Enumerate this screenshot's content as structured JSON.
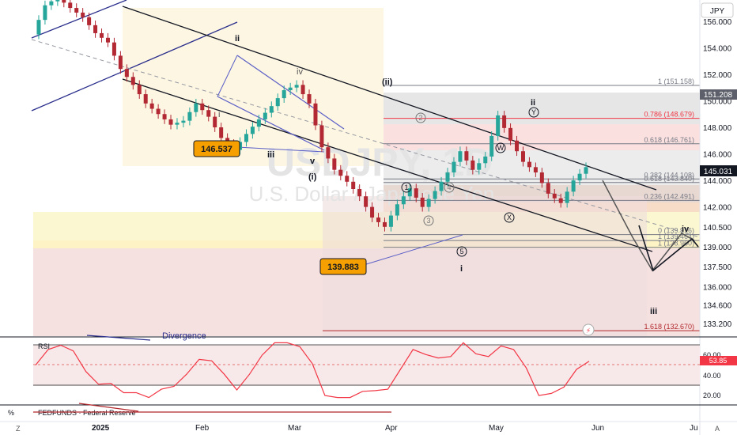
{
  "header": {
    "currency": "JPY",
    "watermark_symbol": "USDJPY, 1D",
    "watermark_name": "U.S. Dollar / Japanese Yen"
  },
  "price_axis": {
    "ticks": [
      "156.000",
      "154.000",
      "152.000",
      "150.000",
      "148.000",
      "146.000",
      "144.000",
      "142.000",
      "140.500",
      "139.000",
      "137.500",
      "136.000",
      "134.600",
      "133.200"
    ],
    "last_price": "145.031",
    "last_price_color": "#131722",
    "marker_151": "151.208"
  },
  "fib_levels": [
    {
      "label": "1 (151.158)",
      "price": 151.158
    },
    {
      "label": "0.786 (148.679)",
      "price": 148.679
    },
    {
      "label": "0.618 (146.761)",
      "price": 146.761
    },
    {
      "label": "0.382 (144.108)",
      "price": 144.108
    },
    {
      "label": "0.618 (143.840)",
      "price": 143.84
    },
    {
      "label": "0.236 (142.491)",
      "price": 142.491
    },
    {
      "label": "0 (139.916)",
      "price": 139.916
    },
    {
      "label": "1 (139.464)",
      "price": 139.464
    },
    {
      "label": "1 (138.960)",
      "price": 138.96
    },
    {
      "label": "1.618 (132.670)",
      "price": 132.67
    }
  ],
  "callouts": {
    "high": "146.537",
    "low": "139.883"
  },
  "wave_labels": {
    "ii_top": "ii",
    "iv": "iv",
    "i_small": "i",
    "iii": "iii",
    "v": "v",
    "i_paren": "(i)",
    "ii_paren": "(ii)",
    "c2": "2",
    "c1": "1",
    "c3": "3",
    "c4": "4",
    "c5": "5",
    "i_main": "i",
    "ii_y_top": "ii",
    "y": "Y",
    "w": "W",
    "x": "X",
    "iv_right": "iv",
    "iii_proj": "iii"
  },
  "time_axis": {
    "labels": [
      "2025",
      "Feb",
      "Mar",
      "Apr",
      "May",
      "Jun",
      "Ju"
    ],
    "z": "Z",
    "a": "A"
  },
  "rsi": {
    "label": "RSI",
    "divergence": "Divergence",
    "ticks": [
      "60.00",
      "40.00",
      "20.00"
    ],
    "value": "53.85",
    "value_color": "#f23645"
  },
  "fedfunds": {
    "label": "FEDFUNDS · Federal Reserve",
    "pct": "%"
  },
  "chart_data": {
    "type": "candlestick",
    "title": "USDJPY, 1D",
    "ylim": [
      132.2,
      157.6
    ],
    "x": [
      "2025",
      "Feb",
      "Mar",
      "Apr",
      "May",
      "Jun"
    ],
    "close_path": [
      155.0,
      157.2,
      157.8,
      157.0,
      156.3,
      155.1,
      154.4,
      152.4,
      151.2,
      149.8,
      149.0,
      148.2,
      148.5,
      149.8,
      148.8,
      147.2,
      146.3,
      147.5,
      148.6,
      149.6,
      150.8,
      151.2,
      149.8,
      146.5,
      144.8,
      143.9,
      142.8,
      141.2,
      140.5,
      142.2,
      143.4,
      142.0,
      143.2,
      144.6,
      146.2,
      144.8,
      145.8,
      148.9,
      147.0,
      145.4,
      144.6,
      143.0,
      142.3,
      144.0,
      145.0
    ],
    "last": 145.031,
    "rsi_last": 53.85
  }
}
